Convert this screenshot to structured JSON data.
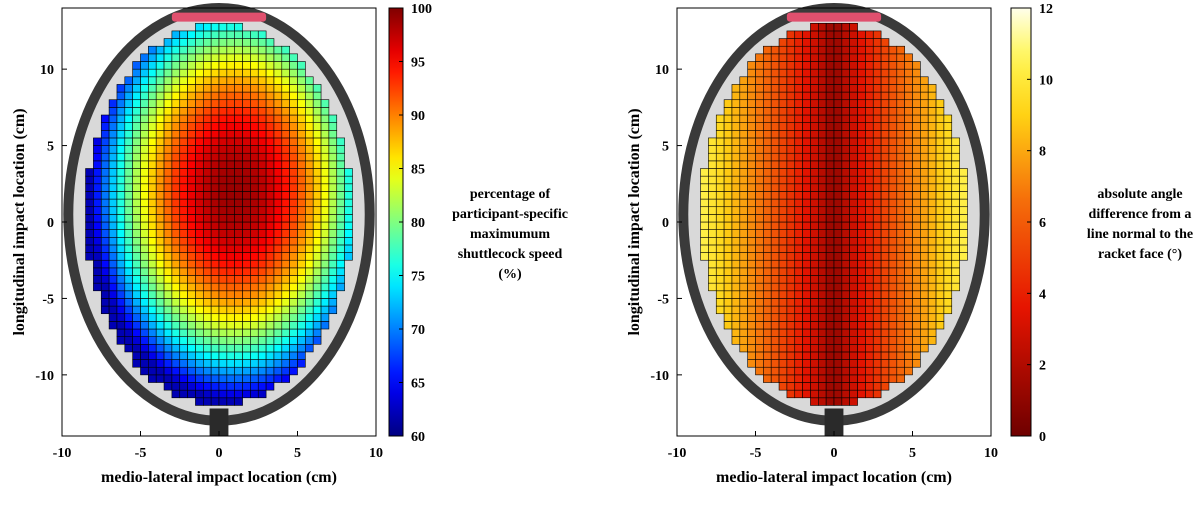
{
  "chart_data": [
    {
      "type": "heatmap",
      "title": "",
      "xlabel": "medio-lateral impact location (cm)",
      "ylabel": "longitudinal impact location (cm)",
      "xlim": [
        -10,
        10
      ],
      "ylim": [
        -14,
        14
      ],
      "xticks": [
        "-10",
        "-5",
        "0",
        "5",
        "10"
      ],
      "yticks": [
        "10",
        "5",
        "0",
        "-5",
        "-10"
      ],
      "x_tick_values": [
        -10,
        -5,
        0,
        5,
        10
      ],
      "y_tick_values": [
        10,
        5,
        0,
        -5,
        -10
      ],
      "colorbar": {
        "min": 60,
        "max": 100,
        "ticks": [
          "100",
          "95",
          "90",
          "85",
          "80",
          "75",
          "70",
          "65",
          "60"
        ],
        "tick_values": [
          100,
          95,
          90,
          85,
          80,
          75,
          70,
          65,
          60
        ],
        "label_lines": [
          "percentage of",
          "participant-specific",
          "maximumum",
          "shuttlecock speed",
          "(%)"
        ],
        "colormap": "jet"
      },
      "surface": {
        "description_model": "radial",
        "peak_value": 99,
        "peak_location": [
          1,
          2
        ],
        "edge_value": 62,
        "string_bed_extent": {
          "x": [
            -8.5,
            8.5
          ],
          "y": [
            -12,
            13
          ]
        }
      },
      "grid": true
    },
    {
      "type": "heatmap",
      "title": "",
      "xlabel": "medio-lateral impact location (cm)",
      "ylabel": "longitudinal impact location (cm)",
      "xlim": [
        -10,
        10
      ],
      "ylim": [
        -14,
        14
      ],
      "xticks": [
        "-10",
        "-5",
        "0",
        "5",
        "10"
      ],
      "yticks": [
        "10",
        "5",
        "0",
        "-5",
        "-10"
      ],
      "x_tick_values": [
        -10,
        -5,
        0,
        5,
        10
      ],
      "y_tick_values": [
        10,
        5,
        0,
        -5,
        -10
      ],
      "colorbar": {
        "min": 0,
        "max": 12,
        "ticks": [
          "12",
          "10",
          "8",
          "6",
          "4",
          "2",
          "0"
        ],
        "tick_values": [
          12,
          10,
          8,
          6,
          4,
          2,
          0
        ],
        "label_lines": [
          "absolute angle",
          "difference from a",
          "line normal to the",
          "racket face (°)"
        ],
        "colormap": "hot"
      },
      "surface": {
        "description_model": "lateral",
        "center_value": 1,
        "edge_value": 10.5,
        "string_bed_extent": {
          "x": [
            -8.5,
            8.5
          ],
          "y": [
            -12,
            13
          ]
        }
      },
      "grid": true
    }
  ],
  "colors": {
    "frame": "#3a3a3a",
    "frame_accent": "#e0506e",
    "grid_line": "#000000"
  }
}
